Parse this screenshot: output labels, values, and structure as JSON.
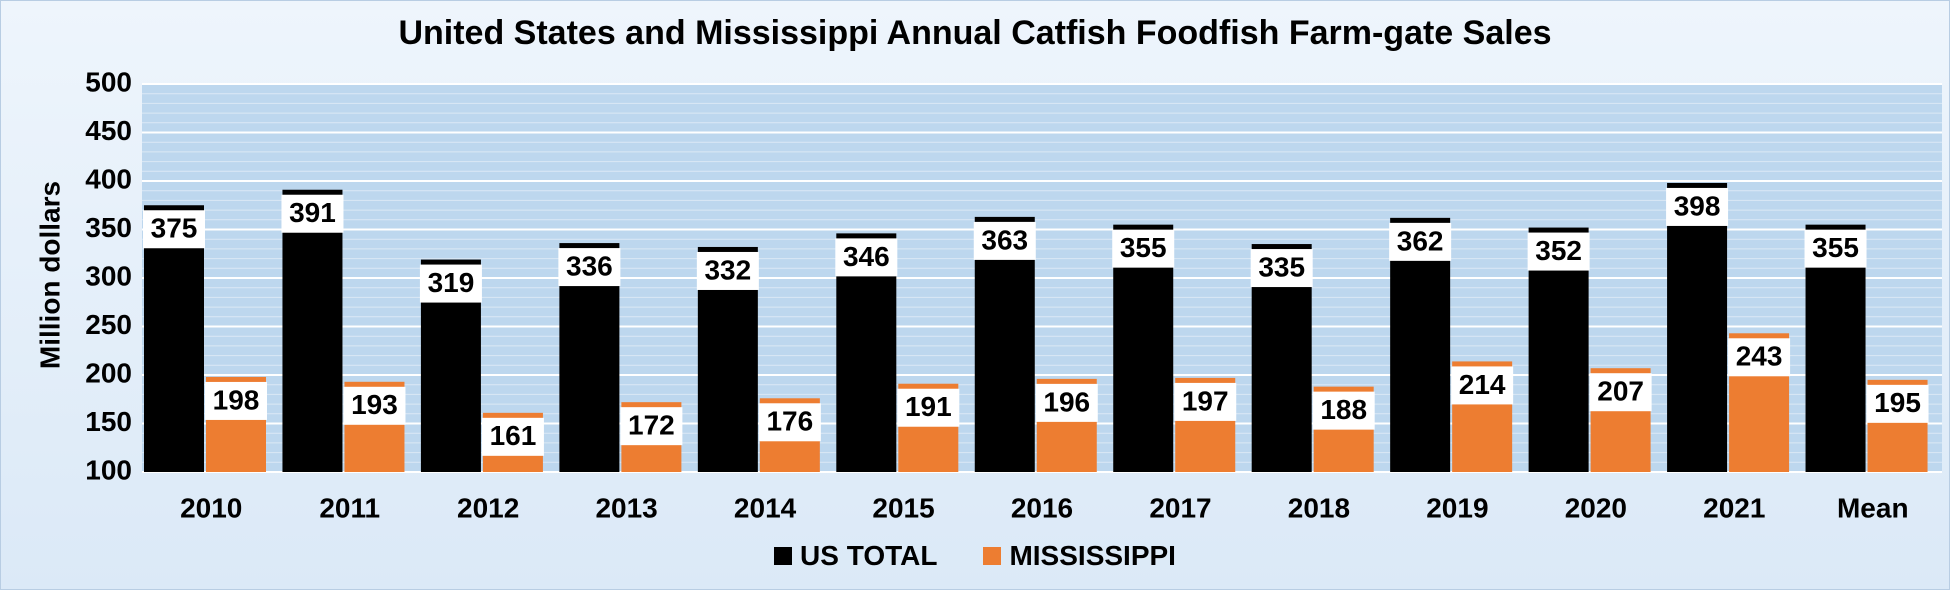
{
  "chart_data": {
    "type": "bar",
    "title": "United States and Mississippi Annual Catfish Foodfish Farm-gate Sales",
    "ylabel": "Million dollars",
    "xlabel": "",
    "ylim": [
      100,
      500
    ],
    "yticks": [
      100,
      150,
      200,
      250,
      300,
      350,
      400,
      450,
      500
    ],
    "grid": true,
    "legend_position": "bottom",
    "categories": [
      "2010",
      "2011",
      "2012",
      "2013",
      "2014",
      "2015",
      "2016",
      "2017",
      "2018",
      "2019",
      "2020",
      "2021",
      "Mean"
    ],
    "series": [
      {
        "name": "US TOTAL",
        "color": "#000000",
        "values": [
          375,
          391,
          319,
          336,
          332,
          346,
          363,
          355,
          335,
          362,
          352,
          398,
          355
        ]
      },
      {
        "name": "MISSISSIPPI",
        "color": "#ed7d31",
        "values": [
          198,
          193,
          161,
          172,
          176,
          191,
          196,
          197,
          188,
          214,
          207,
          243,
          195
        ]
      }
    ]
  }
}
